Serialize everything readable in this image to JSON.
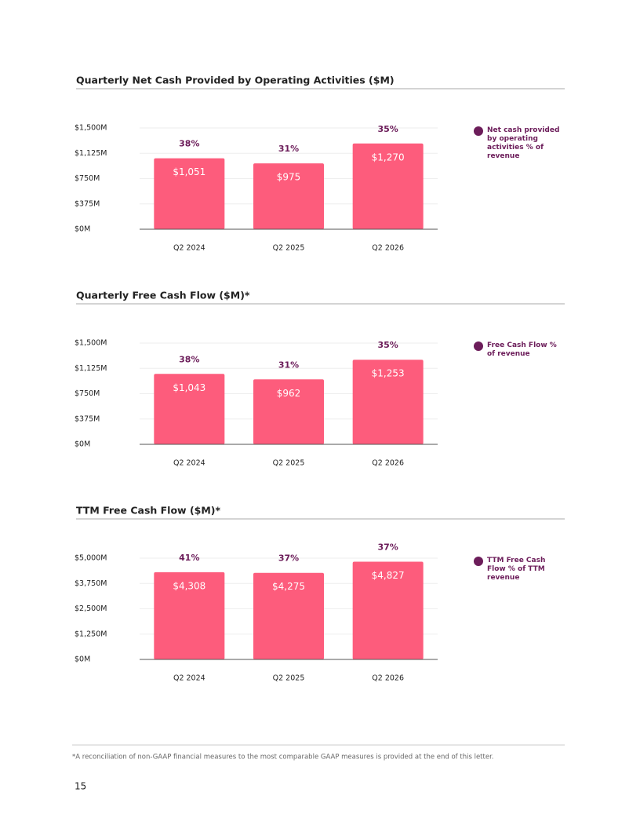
{
  "chart_data": [
    {
      "type": "bar",
      "title": "Quarterly Net Cash Provided by Operating Activities ($M)",
      "categories": [
        "Q2 2024",
        "Q2 2025",
        "Q2 2026"
      ],
      "values": [
        1051,
        975,
        1270
      ],
      "value_labels": [
        "$1,051",
        "$975",
        "$1,270"
      ],
      "color": "#fd5c7c",
      "ylim": [
        0,
        1500
      ],
      "yticks": [
        {
          "value": 0,
          "label": "$0M"
        },
        {
          "value": 375,
          "label": "$375M"
        },
        {
          "value": 750,
          "label": "$750M"
        },
        {
          "value": 1125,
          "label": "$1,125M"
        },
        {
          "value": 1500,
          "label": "$1,500M"
        }
      ],
      "grid": true,
      "percent": {
        "name": "Net cash provided by operating activities % of revenue",
        "color": "#6c1d5a",
        "values": [
          38,
          31,
          35
        ],
        "value_labels": [
          "38%",
          "31%",
          "35%"
        ]
      }
    },
    {
      "type": "bar",
      "title": "Quarterly Free Cash Flow ($M)*",
      "categories": [
        "Q2 2024",
        "Q2 2025",
        "Q2 2026"
      ],
      "values": [
        1043,
        962,
        1253
      ],
      "value_labels": [
        "$1,043",
        "$962",
        "$1,253"
      ],
      "color": "#fd5c7c",
      "ylim": [
        0,
        1500
      ],
      "yticks": [
        {
          "value": 0,
          "label": "$0M"
        },
        {
          "value": 375,
          "label": "$375M"
        },
        {
          "value": 750,
          "label": "$750M"
        },
        {
          "value": 1125,
          "label": "$1,125M"
        },
        {
          "value": 1500,
          "label": "$1,500M"
        }
      ],
      "grid": true,
      "percent": {
        "name": "Free Cash Flow % of revenue",
        "color": "#6c1d5a",
        "values": [
          38,
          31,
          35
        ],
        "value_labels": [
          "38%",
          "31%",
          "35%"
        ]
      }
    },
    {
      "type": "bar",
      "title": "TTM Free Cash Flow ($M)*",
      "categories": [
        "Q2 2024",
        "Q2 2025",
        "Q2 2026"
      ],
      "values": [
        4308,
        4275,
        4827
      ],
      "value_labels": [
        "$4,308",
        "$4,275",
        "$4,827"
      ],
      "color": "#fd5c7c",
      "ylim": [
        0,
        5000
      ],
      "yticks": [
        {
          "value": 0,
          "label": "$0M"
        },
        {
          "value": 1250,
          "label": "$1,250M"
        },
        {
          "value": 2500,
          "label": "$2,500M"
        },
        {
          "value": 3750,
          "label": "$3,750M"
        },
        {
          "value": 5000,
          "label": "$5,000M"
        }
      ],
      "grid": true,
      "percent": {
        "name": "TTM Free Cash Flow % of TTM revenue",
        "color": "#6c1d5a",
        "values": [
          41,
          37,
          37
        ],
        "value_labels": [
          "41%",
          "37%",
          "37%"
        ]
      }
    }
  ],
  "footnote": "*A reconciliation of non-GAAP financial measures to the most comparable GAAP measures is provided at the end of this letter.",
  "page_number": "15"
}
